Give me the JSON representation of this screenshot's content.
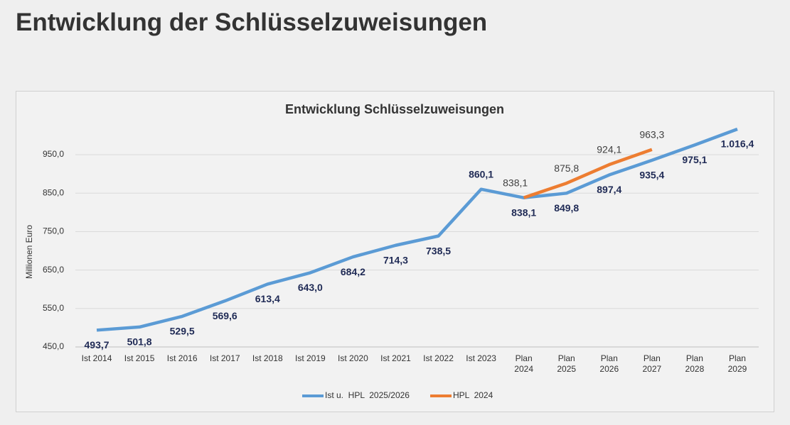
{
  "page_title": "Entwicklung der Schlüsselzuweisungen",
  "chart_data": {
    "type": "line",
    "title": "Entwicklung  Schlüsselzuweisungen",
    "y_label": "Millionen Euro",
    "categories": [
      "Ist 2014",
      "Ist 2015",
      "Ist 2016",
      "Ist 2017",
      "Ist 2018",
      "Ist 2019",
      "Ist 2020",
      "Ist 2021",
      "Ist 2022",
      "Ist 2023",
      "Plan 2024",
      "Plan 2025",
      "Plan 2026",
      "Plan 2027",
      "Plan 2028",
      "Plan 2029"
    ],
    "series": [
      {
        "name": "Ist u.  HPL  2025/2026",
        "color": "#5b9bd5",
        "values": [
          493.7,
          501.8,
          529.5,
          569.6,
          613.4,
          643.0,
          684.2,
          714.3,
          738.5,
          860.1,
          838.1,
          849.8,
          897.4,
          935.4,
          975.1,
          1016.4
        ],
        "value_labels": [
          "493,7",
          "501,8",
          "529,5",
          "569,6",
          "613,4",
          "643,0",
          "684,2",
          "714,3",
          "738,5",
          "860,1",
          "838,1",
          "849,8",
          "897,4",
          "935,4",
          "975,1",
          "1.016,4"
        ]
      },
      {
        "name": "HPL  2024",
        "color": "#ed7d31",
        "values": [
          null,
          null,
          null,
          null,
          null,
          null,
          null,
          null,
          null,
          null,
          838.1,
          875.8,
          924.1,
          963.3,
          null,
          null
        ],
        "value_labels": [
          null,
          null,
          null,
          null,
          null,
          null,
          null,
          null,
          null,
          null,
          "838,1",
          "875,8",
          "924,1",
          "963,3",
          null,
          null
        ]
      }
    ],
    "ylim": [
      450,
      1050
    ],
    "yticks": [
      {
        "value": 450,
        "label": "450,0"
      },
      {
        "value": 550,
        "label": "550,0"
      },
      {
        "value": 650,
        "label": "650,0"
      },
      {
        "value": 750,
        "label": "750,0"
      },
      {
        "value": 850,
        "label": "850,0"
      },
      {
        "value": 950,
        "label": "950,0"
      }
    ],
    "grid": true,
    "legend": "bottom"
  }
}
